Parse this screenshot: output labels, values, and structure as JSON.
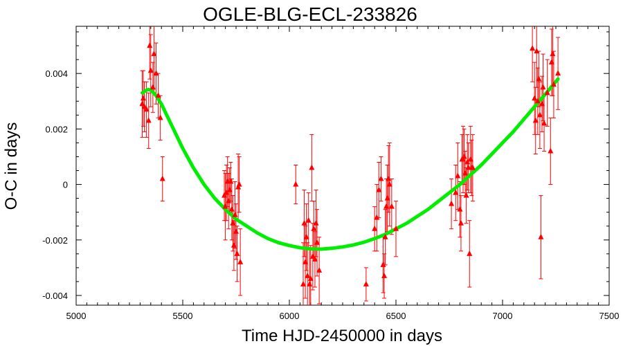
{
  "chart_data": {
    "type": "scatter",
    "title": "OGLE-BLG-ECL-233826",
    "xlabel": "Time HJD-2450000 in days",
    "ylabel": "O-C in days",
    "xlim": [
      5000,
      7500
    ],
    "ylim": [
      -0.00435,
      0.0057
    ],
    "x_ticks": [
      5000,
      5500,
      6000,
      6500,
      7000,
      7500
    ],
    "x_tick_labels": [
      "5000",
      "5500",
      "6000",
      "6500",
      "7000",
      "7500"
    ],
    "y_ticks": [
      -0.004,
      -0.002,
      0,
      0.002,
      0.004
    ],
    "y_tick_labels": [
      "-0.004",
      "-0.002",
      "0",
      "0.002",
      "0.004"
    ],
    "grid": false,
    "legend": "none",
    "series": [
      {
        "kind": "points-with-errorbars",
        "color": "#ff0000",
        "marker": "triangle",
        "points": [
          {
            "x": 5310,
            "y": 0.0029,
            "err": 0.0012
          },
          {
            "x": 5315,
            "y": 0.0031,
            "err": 0.001
          },
          {
            "x": 5320,
            "y": 0.0028,
            "err": 0.0009
          },
          {
            "x": 5330,
            "y": 0.0027,
            "err": 0.001
          },
          {
            "x": 5340,
            "y": 0.0023,
            "err": 0.001
          },
          {
            "x": 5345,
            "y": 0.005,
            "err": 0.0012
          },
          {
            "x": 5350,
            "y": 0.0041,
            "err": 0.0013
          },
          {
            "x": 5360,
            "y": 0.0035,
            "err": 0.0009
          },
          {
            "x": 5365,
            "y": 0.0047,
            "err": 0.0014
          },
          {
            "x": 5375,
            "y": 0.004,
            "err": 0.0011
          },
          {
            "x": 5385,
            "y": 0.0032,
            "err": 0.0008
          },
          {
            "x": 5395,
            "y": 0.0024,
            "err": 0.0008
          },
          {
            "x": 5405,
            "y": 0.0002,
            "err": 0.0008
          },
          {
            "x": 5695,
            "y": -0.0004,
            "err": 0.0009
          },
          {
            "x": 5700,
            "y": -0.0008,
            "err": 0.0012
          },
          {
            "x": 5705,
            "y": -0.0003,
            "err": 0.001
          },
          {
            "x": 5710,
            "y": 0.0001,
            "err": 0.0009
          },
          {
            "x": 5715,
            "y": -0.0006,
            "err": 0.001
          },
          {
            "x": 5720,
            "y": -0.0002,
            "err": 0.0008
          },
          {
            "x": 5725,
            "y": 0.0001,
            "err": 0.0007
          },
          {
            "x": 5730,
            "y": -0.0009,
            "err": 0.0011
          },
          {
            "x": 5735,
            "y": -0.0014,
            "err": 0.001
          },
          {
            "x": 5740,
            "y": -0.0022,
            "err": 0.0009
          },
          {
            "x": 5745,
            "y": -0.0011,
            "err": 0.0012
          },
          {
            "x": 5750,
            "y": -0.0017,
            "err": 0.001
          },
          {
            "x": 5755,
            "y": -0.0025,
            "err": 0.001
          },
          {
            "x": 5760,
            "y": -0.0001,
            "err": 0.0012
          },
          {
            "x": 5765,
            "y": 0.0,
            "err": 0.001
          },
          {
            "x": 5770,
            "y": -0.0028,
            "err": 0.0012
          },
          {
            "x": 6030,
            "y": 0.0,
            "err": 0.0007
          },
          {
            "x": 6065,
            "y": -0.0036,
            "err": 0.0015
          },
          {
            "x": 6070,
            "y": -0.0014,
            "err": 0.0012
          },
          {
            "x": 6075,
            "y": -0.0028,
            "err": 0.0013
          },
          {
            "x": 6080,
            "y": -0.0019,
            "err": 0.0012
          },
          {
            "x": 6085,
            "y": -0.0033,
            "err": 0.0012
          },
          {
            "x": 6090,
            "y": -0.0013,
            "err": 0.001
          },
          {
            "x": 6095,
            "y": -0.0036,
            "err": 0.0013
          },
          {
            "x": 6100,
            "y": -0.0034,
            "err": 0.0012
          },
          {
            "x": 6105,
            "y": 0.0006,
            "err": 0.0012
          },
          {
            "x": 6110,
            "y": -0.0026,
            "err": 0.0012
          },
          {
            "x": 6115,
            "y": -0.0016,
            "err": 0.001
          },
          {
            "x": 6120,
            "y": -0.0027,
            "err": 0.001
          },
          {
            "x": 6125,
            "y": -0.0014,
            "err": 0.0012
          },
          {
            "x": 6130,
            "y": -0.0021,
            "err": 0.0012
          },
          {
            "x": 6140,
            "y": -0.0031,
            "err": 0.0012
          },
          {
            "x": 6360,
            "y": -0.0036,
            "err": 0.0006
          },
          {
            "x": 6400,
            "y": -0.0016,
            "err": 0.0008
          },
          {
            "x": 6410,
            "y": -0.0012,
            "err": 0.0012
          },
          {
            "x": 6420,
            "y": -0.0002,
            "err": 0.001
          },
          {
            "x": 6430,
            "y": 0.0002,
            "err": 0.0008
          },
          {
            "x": 6440,
            "y": -0.0029,
            "err": 0.001
          },
          {
            "x": 6445,
            "y": -0.0033,
            "err": 0.0008
          },
          {
            "x": 6450,
            "y": -0.0019,
            "err": 0.001
          },
          {
            "x": 6455,
            "y": -0.0008,
            "err": 0.001
          },
          {
            "x": 6460,
            "y": -0.0005,
            "err": 0.0012
          },
          {
            "x": 6465,
            "y": 0.0002,
            "err": 0.0012
          },
          {
            "x": 6470,
            "y": 0.0,
            "err": 0.0015
          },
          {
            "x": 6480,
            "y": -0.0008,
            "err": 0.001
          },
          {
            "x": 6500,
            "y": -0.0016,
            "err": 0.001
          },
          {
            "x": 6760,
            "y": -0.0007,
            "err": 0.0009
          },
          {
            "x": 6780,
            "y": -0.0003,
            "err": 0.001
          },
          {
            "x": 6790,
            "y": 0.0003,
            "err": 0.0012
          },
          {
            "x": 6800,
            "y": -0.0009,
            "err": 0.001
          },
          {
            "x": 6805,
            "y": -0.0014,
            "err": 0.001
          },
          {
            "x": 6810,
            "y": 0.0009,
            "err": 0.0009
          },
          {
            "x": 6815,
            "y": 0.0009,
            "err": 0.0012
          },
          {
            "x": 6820,
            "y": 0.001,
            "err": 0.001
          },
          {
            "x": 6825,
            "y": 0.0004,
            "err": 0.0008
          },
          {
            "x": 6830,
            "y": -0.0004,
            "err": 0.001
          },
          {
            "x": 6835,
            "y": 0.0008,
            "err": 0.001
          },
          {
            "x": 6840,
            "y": 0.0006,
            "err": 0.0009
          },
          {
            "x": 6845,
            "y": -0.0025,
            "err": 0.0012
          },
          {
            "x": 6850,
            "y": 0.0009,
            "err": 0.0012
          },
          {
            "x": 6855,
            "y": 0.0006,
            "err": 0.001
          },
          {
            "x": 6860,
            "y": 0.0006,
            "err": 0.0012
          },
          {
            "x": 7140,
            "y": 0.0049,
            "err": 0.0012
          },
          {
            "x": 7150,
            "y": 0.0031,
            "err": 0.0013
          },
          {
            "x": 7155,
            "y": 0.0023,
            "err": 0.0012
          },
          {
            "x": 7160,
            "y": 0.0048,
            "err": 0.0013
          },
          {
            "x": 7165,
            "y": 0.003,
            "err": 0.0012
          },
          {
            "x": 7170,
            "y": 0.0038,
            "err": 0.001
          },
          {
            "x": 7175,
            "y": 0.0025,
            "err": 0.0012
          },
          {
            "x": 7180,
            "y": -0.0019,
            "err": 0.0015
          },
          {
            "x": 7185,
            "y": 0.0029,
            "err": 0.001
          },
          {
            "x": 7190,
            "y": 0.0035,
            "err": 0.0012
          },
          {
            "x": 7195,
            "y": 0.0022,
            "err": 0.001
          },
          {
            "x": 7210,
            "y": 0.0033,
            "err": 0.0012
          },
          {
            "x": 7225,
            "y": 0.0012,
            "err": 0.0012
          },
          {
            "x": 7230,
            "y": 0.0044,
            "err": 0.0012
          },
          {
            "x": 7235,
            "y": 0.0047,
            "err": 0.0015
          },
          {
            "x": 7240,
            "y": 0.0036,
            "err": 0.0012
          },
          {
            "x": 7260,
            "y": 0.004,
            "err": 0.0013
          }
        ]
      },
      {
        "kind": "fit-curve",
        "color": "#00ee00",
        "points": [
          {
            "x": 5310,
            "y": 0.0033
          },
          {
            "x": 5320,
            "y": 0.00335
          },
          {
            "x": 5330,
            "y": 0.0034
          },
          {
            "x": 5340,
            "y": 0.00342
          },
          {
            "x": 5350,
            "y": 0.0034
          },
          {
            "x": 5360,
            "y": 0.00333
          },
          {
            "x": 5375,
            "y": 0.0032
          },
          {
            "x": 5400,
            "y": 0.0029
          },
          {
            "x": 5450,
            "y": 0.0021
          },
          {
            "x": 5500,
            "y": 0.0013
          },
          {
            "x": 5550,
            "y": 0.0006
          },
          {
            "x": 5600,
            "y": 0.0
          },
          {
            "x": 5650,
            "y": -0.0005
          },
          {
            "x": 5700,
            "y": -0.0009
          },
          {
            "x": 5750,
            "y": -0.00125
          },
          {
            "x": 5800,
            "y": -0.0015
          },
          {
            "x": 5850,
            "y": -0.00175
          },
          {
            "x": 5900,
            "y": -0.00195
          },
          {
            "x": 5950,
            "y": -0.0021
          },
          {
            "x": 6000,
            "y": -0.0022
          },
          {
            "x": 6050,
            "y": -0.00228
          },
          {
            "x": 6100,
            "y": -0.00232
          },
          {
            "x": 6150,
            "y": -0.00233
          },
          {
            "x": 6200,
            "y": -0.0023
          },
          {
            "x": 6250,
            "y": -0.00225
          },
          {
            "x": 6300,
            "y": -0.00218
          },
          {
            "x": 6350,
            "y": -0.00208
          },
          {
            "x": 6400,
            "y": -0.00195
          },
          {
            "x": 6450,
            "y": -0.0018
          },
          {
            "x": 6500,
            "y": -0.0016
          },
          {
            "x": 6550,
            "y": -0.0014
          },
          {
            "x": 6600,
            "y": -0.00115
          },
          {
            "x": 6650,
            "y": -0.0009
          },
          {
            "x": 6700,
            "y": -0.0006
          },
          {
            "x": 6750,
            "y": -0.0003
          },
          {
            "x": 6800,
            "y": 0.0
          },
          {
            "x": 6850,
            "y": 0.00035
          },
          {
            "x": 6900,
            "y": 0.0007
          },
          {
            "x": 6950,
            "y": 0.0011
          },
          {
            "x": 7000,
            "y": 0.0015
          },
          {
            "x": 7050,
            "y": 0.0019
          },
          {
            "x": 7100,
            "y": 0.00235
          },
          {
            "x": 7150,
            "y": 0.0028
          },
          {
            "x": 7200,
            "y": 0.00325
          },
          {
            "x": 7260,
            "y": 0.0038
          }
        ]
      }
    ]
  }
}
